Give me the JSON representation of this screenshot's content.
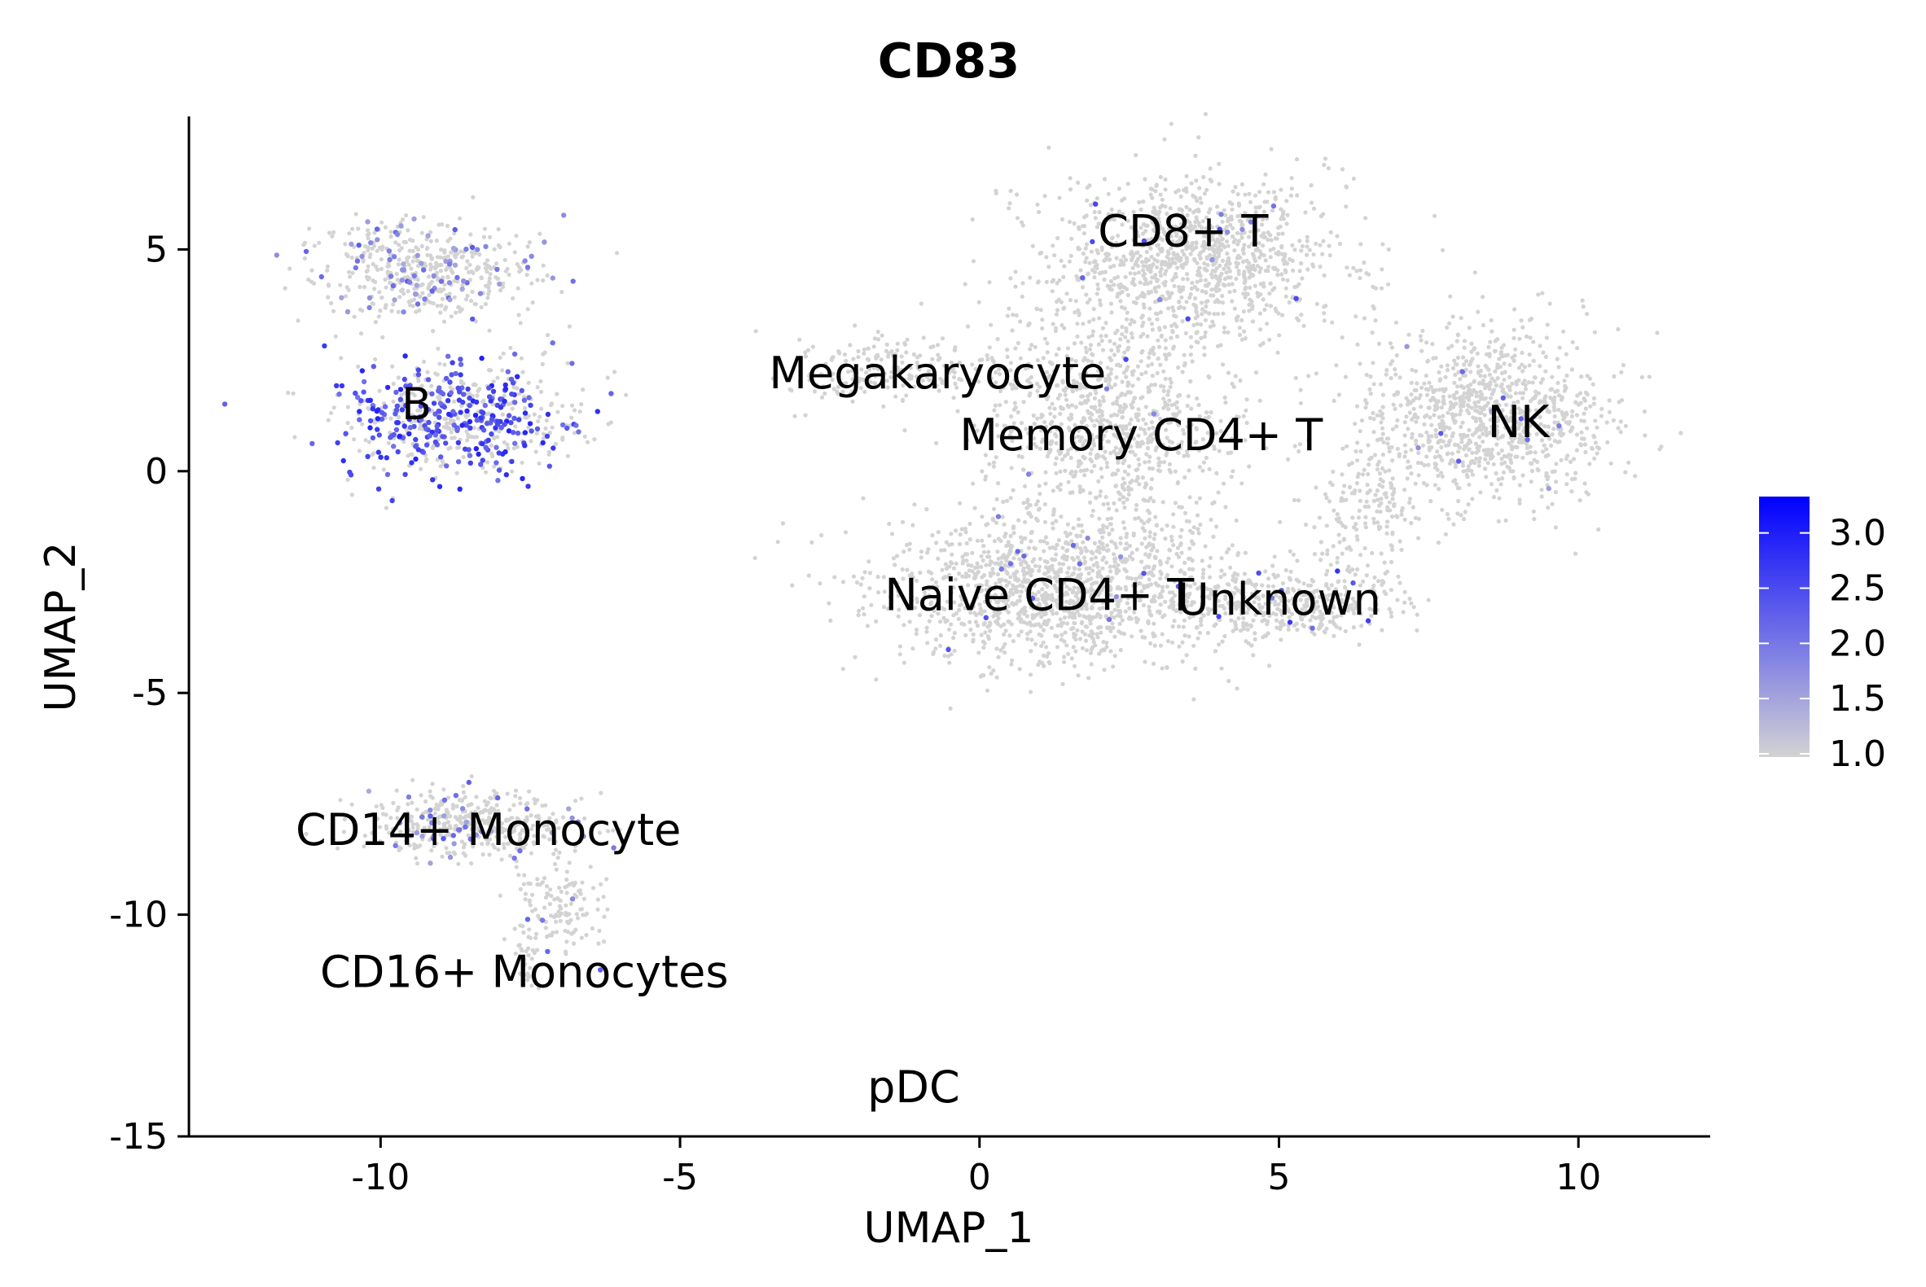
{
  "chart_data": {
    "type": "scatter",
    "title": "CD83",
    "xlabel": "UMAP_1",
    "ylabel": "UMAP_2",
    "xlim": [
      -13.2,
      12.2
    ],
    "ylim": [
      -15,
      8
    ],
    "xticks": [
      -10,
      -5,
      0,
      5,
      10
    ],
    "yticks": [
      -15,
      -10,
      -5,
      0,
      5
    ],
    "xtick_labels": [
      "-10",
      "-5",
      "0",
      "5",
      "10"
    ],
    "ytick_labels": [
      "-15",
      "-10",
      "-5",
      "0",
      "5"
    ],
    "grid": false,
    "colors": {
      "low": "#d3d3d3",
      "high": "#0000ff"
    },
    "color_scale": {
      "min": 1.0,
      "max": 3.3,
      "ticks": [
        "1.0",
        "1.5",
        "2.0",
        "2.5",
        "3.0"
      ],
      "position": "right"
    },
    "cluster_labels": [
      {
        "text": "B",
        "x": -9.4,
        "y": 1.5
      },
      {
        "text": "CD8+ T",
        "x": 3.4,
        "y": 5.4
      },
      {
        "text": "Megakaryocyte",
        "x": -0.7,
        "y": 2.2
      },
      {
        "text": "Memory CD4+ T",
        "x": 2.7,
        "y": 0.8
      },
      {
        "text": "NK",
        "x": 9.0,
        "y": 1.1
      },
      {
        "text": "Naive CD4+ T",
        "x": 1.0,
        "y": -2.8
      },
      {
        "text": "Unknown",
        "x": 5.0,
        "y": -2.9
      },
      {
        "text": "CD14+ Monocyte",
        "x": -8.2,
        "y": -8.1
      },
      {
        "text": "CD16+ Monocytes",
        "x": -7.6,
        "y": -11.3
      },
      {
        "text": "pDC",
        "x": -1.1,
        "y": -13.9
      }
    ],
    "clusters": [
      {
        "cx": -9.3,
        "cy": 4.5,
        "sx": 1.3,
        "sy": 0.75,
        "n": 480,
        "expr": 0.18,
        "level": 1.8
      },
      {
        "cx": -8.8,
        "cy": 1.2,
        "sx": 1.35,
        "sy": 0.85,
        "n": 620,
        "expr": 0.45,
        "level": 2.4
      },
      {
        "cx": 3.6,
        "cy": 4.8,
        "sx": 1.6,
        "sy": 1.25,
        "n": 1100,
        "expr": 0.01,
        "level": 2.0
      },
      {
        "cx": 2.1,
        "cy": 1.2,
        "sx": 1.4,
        "sy": 1.6,
        "n": 900,
        "expr": 0.01,
        "level": 2.0
      },
      {
        "cx": -1.5,
        "cy": 2.3,
        "sx": 1.3,
        "sy": 0.5,
        "n": 200,
        "expr": 0.0,
        "level": 1.0
      },
      {
        "cx": 1.4,
        "cy": -2.6,
        "sx": 2.1,
        "sy": 1.15,
        "n": 1400,
        "expr": 0.01,
        "level": 2.0
      },
      {
        "cx": 5.3,
        "cy": -3.0,
        "sx": 1.2,
        "sy": 0.5,
        "n": 350,
        "expr": 0.02,
        "level": 2.2
      },
      {
        "cx": 8.5,
        "cy": 1.2,
        "sx": 1.4,
        "sy": 1.3,
        "n": 1000,
        "expr": 0.01,
        "level": 1.8
      },
      {
        "cx": 6.5,
        "cy": -1.0,
        "sx": 0.8,
        "sy": 0.9,
        "n": 150,
        "expr": 0.0,
        "level": 1.0
      },
      {
        "cx": -8.5,
        "cy": -8.0,
        "sx": 1.2,
        "sy": 0.5,
        "n": 420,
        "expr": 0.1,
        "level": 1.8
      },
      {
        "cx": -7.0,
        "cy": -9.8,
        "sx": 0.5,
        "sy": 0.7,
        "n": 130,
        "expr": 0.05,
        "level": 1.8
      },
      {
        "cx": -7.5,
        "cy": -11.0,
        "sx": 0.15,
        "sy": 0.5,
        "n": 30,
        "expr": 0.0,
        "level": 1.0
      }
    ]
  }
}
